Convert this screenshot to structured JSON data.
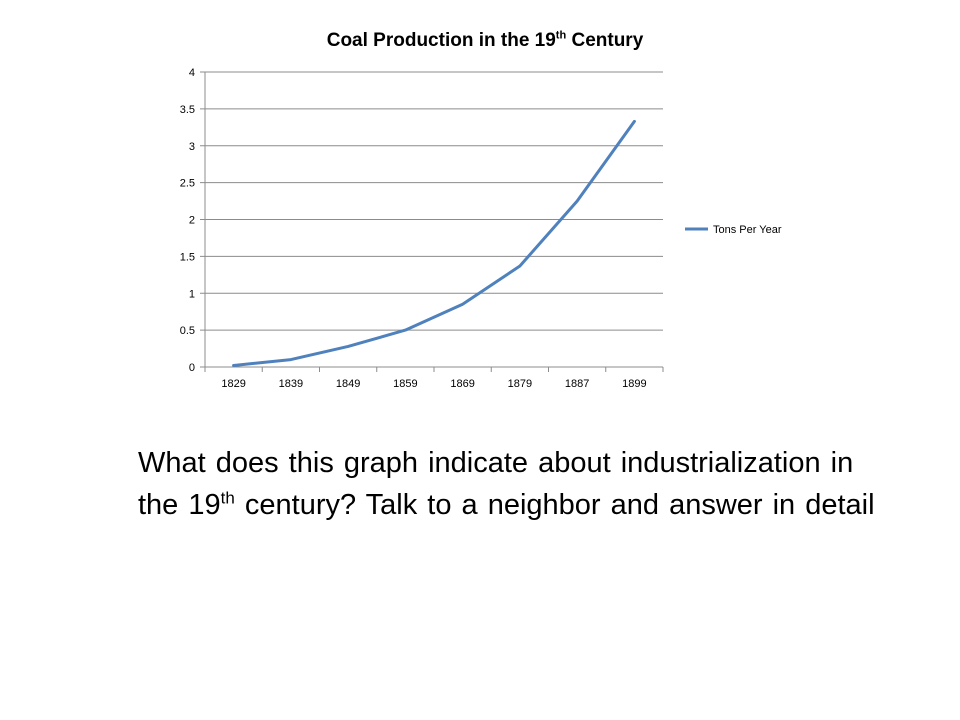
{
  "chart_data": {
    "type": "line",
    "title_main": "Coal Production in the 19",
    "title_sup": "th",
    "title_end": " Century",
    "categories": [
      "1829",
      "1839",
      "1849",
      "1859",
      "1869",
      "1879",
      "1887",
      "1899"
    ],
    "series": [
      {
        "name": "Tons Per Year",
        "values": [
          0.02,
          0.1,
          0.28,
          0.5,
          0.85,
          1.37,
          2.25,
          3.33
        ],
        "color": "#4f81bd"
      }
    ],
    "ylim": [
      0,
      4
    ],
    "yticks": [
      "0",
      "0.5",
      "1",
      "1.5",
      "2",
      "2.5",
      "3",
      "3.5",
      "4"
    ],
    "grid": true,
    "legend_position": "right"
  },
  "question": {
    "part1": "What does this graph indicate about industrialization in the 19",
    "sup": "th",
    "part2": " century? Talk to a neighbor and answer in detail"
  }
}
